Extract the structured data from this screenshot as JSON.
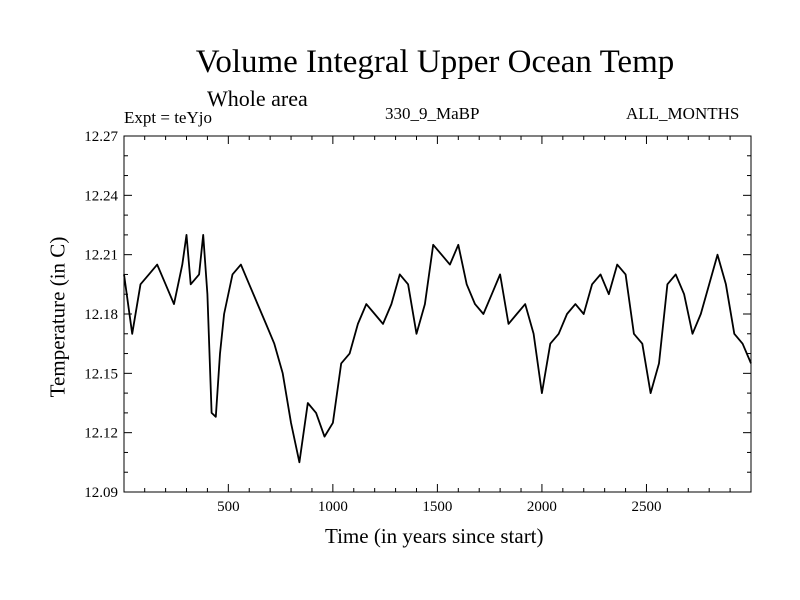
{
  "chart_data": {
    "type": "line",
    "title": "Volume Integral Upper Ocean Temp",
    "subtitle": "Whole area",
    "experiment_label": "Expt = teYjo",
    "run_label": "330_9_MaBP",
    "period_label": "ALL_MONTHS",
    "xlabel": "Time (in years since start)",
    "ylabel": "Temperature (in C)",
    "xlim": [
      1,
      3000
    ],
    "ylim": [
      12.09,
      12.27
    ],
    "xticks": [
      500,
      1000,
      1500,
      2000,
      2500
    ],
    "xtick_labels": [
      "500",
      "1000",
      "1500",
      "2000",
      "2500"
    ],
    "yticks": [
      12.09,
      12.12,
      12.15,
      12.18,
      12.21,
      12.24,
      12.27
    ],
    "ytick_labels": [
      "12.09",
      "12.12",
      "12.15",
      "12.18",
      "12.21",
      "12.24",
      "12.27"
    ],
    "grid": false,
    "series": [
      {
        "name": "Temperature",
        "x": [
          1,
          40,
          80,
          120,
          160,
          200,
          240,
          280,
          300,
          320,
          360,
          380,
          400,
          420,
          440,
          460,
          480,
          520,
          560,
          600,
          640,
          680,
          720,
          760,
          800,
          840,
          880,
          920,
          960,
          1000,
          1040,
          1080,
          1120,
          1160,
          1200,
          1240,
          1280,
          1320,
          1360,
          1400,
          1440,
          1480,
          1520,
          1560,
          1600,
          1640,
          1680,
          1720,
          1760,
          1800,
          1840,
          1880,
          1920,
          1960,
          2000,
          2040,
          2080,
          2120,
          2160,
          2200,
          2240,
          2280,
          2320,
          2360,
          2400,
          2440,
          2480,
          2520,
          2560,
          2600,
          2640,
          2680,
          2720,
          2760,
          2800,
          2840,
          2880,
          2920,
          2960,
          3000
        ],
        "values": [
          12.2,
          12.17,
          12.195,
          12.2,
          12.205,
          12.195,
          12.185,
          12.205,
          12.22,
          12.195,
          12.2,
          12.22,
          12.19,
          12.13,
          12.128,
          12.16,
          12.18,
          12.2,
          12.205,
          12.195,
          12.185,
          12.175,
          12.165,
          12.15,
          12.125,
          12.105,
          12.135,
          12.13,
          12.118,
          12.125,
          12.155,
          12.16,
          12.175,
          12.185,
          12.18,
          12.175,
          12.185,
          12.2,
          12.195,
          12.17,
          12.185,
          12.215,
          12.21,
          12.205,
          12.215,
          12.195,
          12.185,
          12.18,
          12.19,
          12.2,
          12.175,
          12.18,
          12.185,
          12.17,
          12.14,
          12.165,
          12.17,
          12.18,
          12.185,
          12.18,
          12.195,
          12.2,
          12.19,
          12.205,
          12.2,
          12.17,
          12.165,
          12.14,
          12.155,
          12.195,
          12.2,
          12.19,
          12.17,
          12.18,
          12.195,
          12.21,
          12.195,
          12.17,
          12.165,
          12.155
        ]
      }
    ]
  }
}
